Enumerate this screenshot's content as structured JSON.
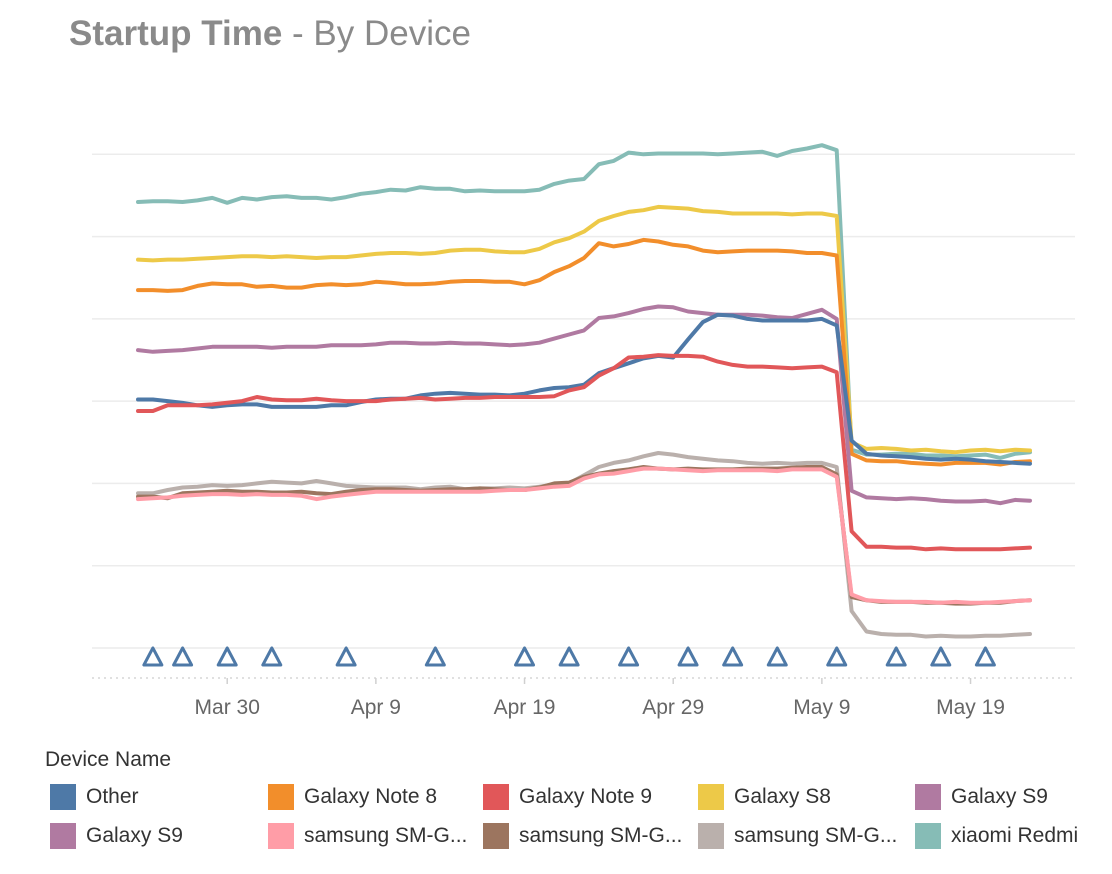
{
  "title": {
    "bold": "Startup Time",
    "rest": " - By Device"
  },
  "legend": {
    "title": "Device Name",
    "items": [
      {
        "label": "Other",
        "color": "#4e79a7"
      },
      {
        "label": "Galaxy Note 8",
        "color": "#f28e2b"
      },
      {
        "label": "Galaxy Note 9",
        "color": "#e15759"
      },
      {
        "label": "Galaxy S8",
        "color": "#edc948"
      },
      {
        "label": "Galaxy S9",
        "color": "#b07aa1"
      },
      {
        "label": "Galaxy S9",
        "color": "#b07aa1"
      },
      {
        "label": "samsung SM-G...",
        "color": "#ff9da7"
      },
      {
        "label": "samsung SM-G...",
        "color": "#9c755f"
      },
      {
        "label": "samsung SM-G...",
        "color": "#bab0ac"
      },
      {
        "label": "xiaomi Redmi",
        "color": "#86bcb6"
      }
    ]
  },
  "chart_data": {
    "type": "line",
    "title": "Startup Time - By Device",
    "xlabel": "",
    "ylabel": "",
    "x_tick_labels": [
      "Mar 30",
      "Apr 9",
      "Apr 19",
      "Apr 29",
      "May 9",
      "May 19"
    ],
    "x_tick_days": [
      30,
      40,
      50,
      60,
      70,
      80
    ],
    "xlim_days": [
      24,
      84
    ],
    "ylim": [
      0,
      7
    ],
    "grid": true,
    "y_axis_labels_shown": false,
    "x": [
      24,
      25,
      26,
      27,
      28,
      29,
      30,
      31,
      32,
      33,
      34,
      35,
      36,
      37,
      38,
      39,
      40,
      41,
      42,
      43,
      44,
      45,
      46,
      47,
      48,
      49,
      50,
      51,
      52,
      53,
      54,
      55,
      56,
      57,
      58,
      59,
      60,
      61,
      62,
      63,
      64,
      65,
      66,
      67,
      68,
      69,
      70,
      71,
      72,
      73,
      74,
      75,
      76,
      77,
      78,
      79,
      80,
      81,
      82,
      83,
      84
    ],
    "markers": {
      "shape": "triangle",
      "color": "#4e79a7",
      "x": [
        25,
        27,
        30,
        33,
        38,
        44,
        50,
        53,
        57,
        61,
        64,
        67,
        71,
        75,
        78,
        81
      ]
    },
    "series": [
      {
        "name": "xiaomi Redmi",
        "color": "#86bcb6",
        "values": [
          5.42,
          5.43,
          5.43,
          5.42,
          5.44,
          5.47,
          5.41,
          5.47,
          5.45,
          5.48,
          5.49,
          5.47,
          5.47,
          5.45,
          5.48,
          5.52,
          5.54,
          5.57,
          5.56,
          5.6,
          5.58,
          5.58,
          5.55,
          5.56,
          5.55,
          5.55,
          5.55,
          5.57,
          5.64,
          5.68,
          5.7,
          5.88,
          5.92,
          6.02,
          6.0,
          6.01,
          6.01,
          6.01,
          6.01,
          6.0,
          6.01,
          6.02,
          6.03,
          5.98,
          6.04,
          6.07,
          6.11,
          6.05,
          2.41,
          2.35,
          2.35,
          2.36,
          2.36,
          2.34,
          2.34,
          2.33,
          2.34,
          2.35,
          2.31,
          2.36,
          2.38
        ]
      },
      {
        "name": "Galaxy S8",
        "color": "#edc948",
        "values": [
          4.72,
          4.71,
          4.72,
          4.72,
          4.73,
          4.74,
          4.75,
          4.76,
          4.76,
          4.75,
          4.76,
          4.75,
          4.74,
          4.75,
          4.75,
          4.77,
          4.79,
          4.8,
          4.8,
          4.79,
          4.8,
          4.83,
          4.84,
          4.84,
          4.82,
          4.81,
          4.81,
          4.85,
          4.93,
          4.98,
          5.06,
          5.19,
          5.25,
          5.3,
          5.32,
          5.36,
          5.35,
          5.34,
          5.31,
          5.3,
          5.28,
          5.28,
          5.28,
          5.28,
          5.27,
          5.28,
          5.28,
          5.25,
          2.5,
          2.42,
          2.43,
          2.42,
          2.4,
          2.41,
          2.39,
          2.38,
          2.4,
          2.41,
          2.39,
          2.41,
          2.4
        ]
      },
      {
        "name": "Galaxy Note 8",
        "color": "#f28e2b",
        "values": [
          4.35,
          4.35,
          4.34,
          4.35,
          4.4,
          4.43,
          4.42,
          4.42,
          4.39,
          4.4,
          4.38,
          4.38,
          4.41,
          4.42,
          4.41,
          4.42,
          4.45,
          4.44,
          4.42,
          4.42,
          4.43,
          4.45,
          4.46,
          4.46,
          4.45,
          4.45,
          4.42,
          4.47,
          4.57,
          4.64,
          4.74,
          4.92,
          4.88,
          4.91,
          4.96,
          4.94,
          4.9,
          4.88,
          4.83,
          4.81,
          4.82,
          4.83,
          4.83,
          4.83,
          4.82,
          4.8,
          4.8,
          4.77,
          2.36,
          2.28,
          2.27,
          2.27,
          2.25,
          2.24,
          2.23,
          2.25,
          2.25,
          2.25,
          2.23,
          2.26,
          2.27
        ]
      },
      {
        "name": "Galaxy S9",
        "color": "#b07aa1",
        "values": [
          3.62,
          3.6,
          3.61,
          3.62,
          3.64,
          3.66,
          3.66,
          3.66,
          3.66,
          3.65,
          3.66,
          3.66,
          3.66,
          3.68,
          3.68,
          3.68,
          3.69,
          3.71,
          3.71,
          3.7,
          3.7,
          3.71,
          3.7,
          3.7,
          3.69,
          3.68,
          3.69,
          3.71,
          3.76,
          3.81,
          3.86,
          4.01,
          4.03,
          4.07,
          4.12,
          4.15,
          4.14,
          4.09,
          4.07,
          4.05,
          4.05,
          4.05,
          4.04,
          4.02,
          4.01,
          4.06,
          4.11,
          4.0,
          1.91,
          1.83,
          1.82,
          1.81,
          1.82,
          1.81,
          1.79,
          1.78,
          1.78,
          1.79,
          1.76,
          1.8,
          1.79
        ]
      },
      {
        "name": "Other",
        "color": "#4e79a7",
        "values": [
          3.02,
          3.02,
          3.0,
          2.98,
          2.95,
          2.93,
          2.95,
          2.96,
          2.96,
          2.93,
          2.93,
          2.93,
          2.93,
          2.95,
          2.95,
          2.99,
          3.02,
          3.03,
          3.03,
          3.07,
          3.09,
          3.1,
          3.09,
          3.08,
          3.08,
          3.07,
          3.09,
          3.13,
          3.16,
          3.17,
          3.2,
          3.34,
          3.4,
          3.46,
          3.52,
          3.55,
          3.53,
          3.75,
          3.96,
          4.05,
          4.04,
          4.0,
          3.98,
          3.98,
          3.98,
          3.98,
          4.0,
          3.92,
          2.52,
          2.36,
          2.34,
          2.33,
          2.32,
          2.3,
          2.29,
          2.3,
          2.29,
          2.27,
          2.26,
          2.25,
          2.24
        ]
      },
      {
        "name": "Galaxy Note 9",
        "color": "#e15759",
        "values": [
          2.88,
          2.88,
          2.95,
          2.95,
          2.95,
          2.96,
          2.98,
          3.0,
          3.05,
          3.02,
          3.01,
          3.01,
          3.03,
          3.01,
          3.0,
          3.0,
          3.0,
          3.02,
          3.03,
          3.04,
          3.02,
          3.03,
          3.04,
          3.04,
          3.05,
          3.05,
          3.05,
          3.05,
          3.06,
          3.13,
          3.17,
          3.31,
          3.4,
          3.53,
          3.54,
          3.56,
          3.55,
          3.55,
          3.54,
          3.48,
          3.44,
          3.42,
          3.42,
          3.41,
          3.4,
          3.41,
          3.42,
          3.35,
          1.42,
          1.23,
          1.23,
          1.22,
          1.22,
          1.2,
          1.21,
          1.2,
          1.2,
          1.2,
          1.2,
          1.21,
          1.22
        ]
      },
      {
        "name": "samsung SM-G...",
        "color": "#bab0ac",
        "values": [
          1.88,
          1.88,
          1.92,
          1.95,
          1.96,
          1.98,
          1.97,
          1.98,
          2.0,
          2.02,
          2.01,
          2.0,
          2.03,
          2.0,
          1.97,
          1.96,
          1.95,
          1.95,
          1.95,
          1.93,
          1.95,
          1.96,
          1.93,
          1.94,
          1.94,
          1.95,
          1.94,
          1.96,
          1.99,
          2.0,
          2.1,
          2.2,
          2.25,
          2.28,
          2.33,
          2.37,
          2.35,
          2.32,
          2.3,
          2.28,
          2.27,
          2.25,
          2.24,
          2.25,
          2.24,
          2.25,
          2.25,
          2.2,
          0.45,
          0.2,
          0.17,
          0.16,
          0.16,
          0.14,
          0.15,
          0.14,
          0.14,
          0.15,
          0.15,
          0.16,
          0.17
        ]
      },
      {
        "name": "samsung SM-G...",
        "color": "#9c755f",
        "values": [
          1.84,
          1.84,
          1.82,
          1.88,
          1.89,
          1.9,
          1.91,
          1.9,
          1.9,
          1.89,
          1.89,
          1.9,
          1.88,
          1.87,
          1.9,
          1.92,
          1.93,
          1.93,
          1.92,
          1.91,
          1.92,
          1.93,
          1.93,
          1.94,
          1.93,
          1.92,
          1.92,
          1.95,
          2.0,
          2.01,
          2.08,
          2.12,
          2.15,
          2.17,
          2.2,
          2.18,
          2.17,
          2.18,
          2.17,
          2.17,
          2.17,
          2.18,
          2.18,
          2.18,
          2.19,
          2.2,
          2.2,
          2.11,
          0.62,
          0.58,
          0.56,
          0.56,
          0.56,
          0.55,
          0.55,
          0.54,
          0.54,
          0.55,
          0.55,
          0.57,
          0.58
        ]
      },
      {
        "name": "samsung SM-G...",
        "color": "#ff9da7",
        "values": [
          1.81,
          1.82,
          1.83,
          1.85,
          1.86,
          1.87,
          1.87,
          1.86,
          1.87,
          1.86,
          1.86,
          1.85,
          1.81,
          1.84,
          1.86,
          1.88,
          1.9,
          1.9,
          1.9,
          1.9,
          1.9,
          1.9,
          1.9,
          1.9,
          1.91,
          1.92,
          1.92,
          1.94,
          1.96,
          1.97,
          2.06,
          2.11,
          2.12,
          2.15,
          2.18,
          2.18,
          2.17,
          2.16,
          2.15,
          2.16,
          2.16,
          2.16,
          2.16,
          2.15,
          2.17,
          2.17,
          2.17,
          2.08,
          0.65,
          0.58,
          0.57,
          0.56,
          0.56,
          0.56,
          0.55,
          0.56,
          0.55,
          0.55,
          0.56,
          0.57,
          0.58
        ]
      }
    ]
  }
}
